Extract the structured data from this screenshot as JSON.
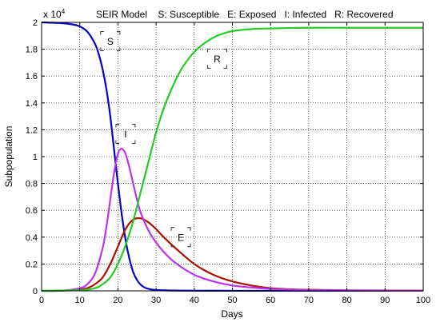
{
  "chart_data": {
    "type": "line",
    "title": "SEIR Model    S: Susceptible   E: Exposed   I: Infected   R: Recovered",
    "xlabel": "Days",
    "ylabel": "Subpopulation",
    "xlim": [
      0,
      100
    ],
    "ylim": [
      0,
      2
    ],
    "y_scale_note": "x 10",
    "y_scale_exp": "4",
    "grid": true,
    "x_ticks": [
      "0",
      "10",
      "20",
      "30",
      "40",
      "50",
      "60",
      "70",
      "80",
      "90",
      "100"
    ],
    "y_ticks": [
      "0",
      "0.2",
      "0.4",
      "0.6",
      "0.8",
      "1",
      "1.2",
      "1.4",
      "1.6",
      "1.8",
      "2"
    ],
    "series": [
      {
        "name": "S",
        "color": "#0000cc",
        "x": [
          0,
          5,
          8,
          10,
          12,
          14,
          15,
          16,
          17,
          18,
          19,
          20,
          21,
          22,
          23,
          24,
          25,
          26,
          27,
          28,
          30,
          35,
          40,
          50,
          60,
          70,
          80,
          90,
          100
        ],
        "y": [
          2.0,
          1.995,
          1.985,
          1.97,
          1.93,
          1.84,
          1.76,
          1.65,
          1.5,
          1.3,
          1.05,
          0.8,
          0.57,
          0.38,
          0.24,
          0.14,
          0.08,
          0.045,
          0.025,
          0.015,
          0.006,
          0.002,
          0.001,
          0.0005,
          0.0005,
          0.0005,
          0.0005,
          0.0005,
          0.0005
        ]
      },
      {
        "name": "E",
        "color": "#aa1100",
        "x": [
          0,
          5,
          10,
          12,
          14,
          16,
          18,
          20,
          22,
          24,
          26,
          28,
          30,
          32,
          35,
          40,
          45,
          50,
          55,
          60,
          65,
          70,
          80,
          90,
          100
        ],
        "y": [
          0,
          0.001,
          0.01,
          0.02,
          0.05,
          0.1,
          0.2,
          0.33,
          0.46,
          0.53,
          0.54,
          0.51,
          0.46,
          0.4,
          0.32,
          0.2,
          0.12,
          0.07,
          0.04,
          0.02,
          0.012,
          0.008,
          0.004,
          0.002,
          0.001
        ]
      },
      {
        "name": "I",
        "color": "#bb33ee",
        "x": [
          0,
          5,
          10,
          12,
          14,
          16,
          17,
          18,
          19,
          20,
          21,
          22,
          23,
          24,
          25,
          26,
          28,
          30,
          32,
          35,
          40,
          45,
          50,
          55,
          60,
          65,
          70,
          80,
          90,
          100
        ],
        "y": [
          0,
          0.001,
          0.02,
          0.05,
          0.13,
          0.32,
          0.48,
          0.68,
          0.88,
          1.02,
          1.06,
          1.02,
          0.92,
          0.8,
          0.68,
          0.58,
          0.45,
          0.36,
          0.29,
          0.21,
          0.12,
          0.07,
          0.04,
          0.025,
          0.015,
          0.01,
          0.006,
          0.003,
          0.001,
          0.0005
        ]
      },
      {
        "name": "R",
        "color": "#22cc22",
        "x": [
          0,
          10,
          14,
          16,
          18,
          20,
          22,
          24,
          26,
          28,
          30,
          32,
          34,
          36,
          38,
          40,
          42,
          44,
          46,
          48,
          50,
          55,
          60,
          65,
          70,
          80,
          90,
          100
        ],
        "y": [
          0,
          0.005,
          0.02,
          0.05,
          0.1,
          0.2,
          0.34,
          0.52,
          0.74,
          0.96,
          1.18,
          1.36,
          1.5,
          1.62,
          1.71,
          1.78,
          1.83,
          1.87,
          1.9,
          1.92,
          1.935,
          1.95,
          1.955,
          1.958,
          1.96,
          1.96,
          1.96,
          1.96
        ]
      }
    ],
    "annotations": [
      {
        "text": "S",
        "x": 18,
        "y": 1.86
      },
      {
        "text": "R",
        "x": 46,
        "y": 1.73
      },
      {
        "text": "I",
        "x": 22,
        "y": 1.17
      },
      {
        "text": "E",
        "x": 36.5,
        "y": 0.4
      }
    ]
  }
}
